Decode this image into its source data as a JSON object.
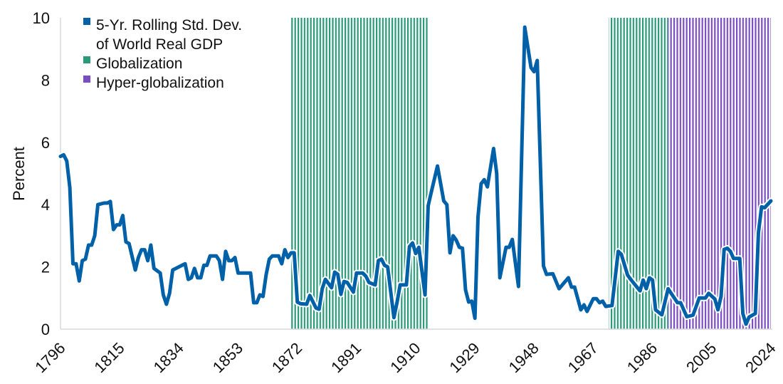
{
  "chart_data": {
    "type": "line",
    "title": "",
    "xlabel": "",
    "ylabel": "Percent",
    "xlim": [
      1796,
      2024
    ],
    "ylim": [
      0,
      10
    ],
    "x_ticks": [
      "1796",
      "1815",
      "1834",
      "1853",
      "1872",
      "1891",
      "1910",
      "1929",
      "1948",
      "1967",
      "1986",
      "2005",
      "2024"
    ],
    "y_ticks": [
      "0",
      "2",
      "4",
      "6",
      "8",
      "10"
    ],
    "grid": false,
    "legend_position": "top-left",
    "legend": [
      {
        "label_lines": [
          "5-Yr. Rolling Std. Dev.",
          "of World Real GDP"
        ],
        "color": "#0061a8",
        "kind": "series"
      },
      {
        "label_lines": [
          "Globalization"
        ],
        "color": "#2a9a78",
        "kind": "band"
      },
      {
        "label_lines": [
          "Hyper-globalization"
        ],
        "color": "#7b4dc2",
        "kind": "band"
      }
    ],
    "bands": [
      {
        "name": "Globalization",
        "start": 1870,
        "end": 1914,
        "color": "#2a9a78"
      },
      {
        "name": "Globalization",
        "start": 1972,
        "end": 1991,
        "color": "#2a9a78"
      },
      {
        "name": "Hyper-globalization",
        "start": 1991,
        "end": 2024,
        "color": "#7b4dc2"
      }
    ],
    "series": [
      {
        "name": "5-Yr. Rolling Std. Dev. of World Real GDP",
        "color": "#0061a8",
        "points": [
          [
            1796,
            5.55
          ],
          [
            1797,
            5.6
          ],
          [
            1798,
            5.4
          ],
          [
            1799,
            4.55
          ],
          [
            1800,
            2.1
          ],
          [
            1801,
            2.1
          ],
          [
            1802,
            1.55
          ],
          [
            1803,
            2.2
          ],
          [
            1804,
            2.25
          ],
          [
            1805,
            2.7
          ],
          [
            1806,
            2.7
          ],
          [
            1807,
            3.0
          ],
          [
            1808,
            4.0
          ],
          [
            1810,
            4.05
          ],
          [
            1811,
            4.05
          ],
          [
            1812,
            4.1
          ],
          [
            1813,
            3.2
          ],
          [
            1814,
            3.35
          ],
          [
            1815,
            3.35
          ],
          [
            1816,
            3.65
          ],
          [
            1817,
            2.8
          ],
          [
            1818,
            2.75
          ],
          [
            1820,
            1.9
          ],
          [
            1821,
            2.3
          ],
          [
            1822,
            2.55
          ],
          [
            1823,
            2.55
          ],
          [
            1824,
            2.2
          ],
          [
            1825,
            2.7
          ],
          [
            1826,
            1.95
          ],
          [
            1828,
            1.8
          ],
          [
            1829,
            1.1
          ],
          [
            1830,
            0.8
          ],
          [
            1831,
            1.15
          ],
          [
            1832,
            1.9
          ],
          [
            1834,
            2.0
          ],
          [
            1835,
            2.05
          ],
          [
            1836,
            2.1
          ],
          [
            1837,
            1.6
          ],
          [
            1838,
            1.65
          ],
          [
            1839,
            1.95
          ],
          [
            1840,
            1.65
          ],
          [
            1841,
            1.65
          ],
          [
            1842,
            2.05
          ],
          [
            1843,
            2.05
          ],
          [
            1844,
            2.35
          ],
          [
            1846,
            2.35
          ],
          [
            1847,
            2.2
          ],
          [
            1848,
            1.6
          ],
          [
            1849,
            2.5
          ],
          [
            1850,
            2.2
          ],
          [
            1851,
            2.2
          ],
          [
            1852,
            2.3
          ],
          [
            1853,
            1.8
          ],
          [
            1855,
            1.8
          ],
          [
            1857,
            1.8
          ],
          [
            1858,
            0.85
          ],
          [
            1859,
            0.85
          ],
          [
            1860,
            1.1
          ],
          [
            1861,
            1.05
          ],
          [
            1862,
            1.75
          ],
          [
            1863,
            2.25
          ],
          [
            1864,
            2.35
          ],
          [
            1866,
            2.35
          ],
          [
            1867,
            2.1
          ],
          [
            1868,
            2.55
          ],
          [
            1869,
            2.3
          ],
          [
            1870,
            2.45
          ],
          [
            1871,
            2.45
          ],
          [
            1872,
            0.87
          ],
          [
            1873,
            0.82
          ],
          [
            1875,
            0.8
          ],
          [
            1876,
            1.08
          ],
          [
            1878,
            0.68
          ],
          [
            1879,
            0.64
          ],
          [
            1880,
            1.3
          ],
          [
            1881,
            1.6
          ],
          [
            1883,
            1.33
          ],
          [
            1884,
            1.83
          ],
          [
            1885,
            1.76
          ],
          [
            1886,
            1.12
          ],
          [
            1887,
            1.53
          ],
          [
            1888,
            1.5
          ],
          [
            1890,
            1.19
          ],
          [
            1891,
            1.8
          ],
          [
            1893,
            1.8
          ],
          [
            1894,
            1.7
          ],
          [
            1895,
            1.5
          ],
          [
            1897,
            1.42
          ],
          [
            1898,
            2.2
          ],
          [
            1899,
            2.25
          ],
          [
            1900,
            2.05
          ],
          [
            1901,
            2.0
          ],
          [
            1903,
            0.37
          ],
          [
            1904,
            0.85
          ],
          [
            1905,
            1.42
          ],
          [
            1907,
            1.42
          ],
          [
            1908,
            2.65
          ],
          [
            1909,
            2.77
          ],
          [
            1910,
            2.43
          ],
          [
            1911,
            2.63
          ],
          [
            1913,
            1.1
          ],
          [
            1914,
            3.96
          ],
          [
            1915,
            4.4
          ],
          [
            1917,
            5.24
          ],
          [
            1919,
            4.12
          ],
          [
            1920,
            4.0
          ],
          [
            1921,
            2.45
          ],
          [
            1922,
            3.0
          ],
          [
            1923,
            2.86
          ],
          [
            1924,
            2.63
          ],
          [
            1925,
            2.6
          ],
          [
            1926,
            1.26
          ],
          [
            1927,
            0.87
          ],
          [
            1928,
            0.9
          ],
          [
            1929,
            0.35
          ],
          [
            1930,
            3.6
          ],
          [
            1931,
            4.67
          ],
          [
            1932,
            4.8
          ],
          [
            1933,
            4.57
          ],
          [
            1935,
            5.8
          ],
          [
            1936,
            5.0
          ],
          [
            1937,
            1.65
          ],
          [
            1939,
            2.63
          ],
          [
            1940,
            2.63
          ],
          [
            1941,
            2.88
          ],
          [
            1943,
            1.37
          ],
          [
            1945,
            9.7
          ],
          [
            1947,
            8.4
          ],
          [
            1948,
            8.27
          ],
          [
            1949,
            8.63
          ],
          [
            1951,
            2.03
          ],
          [
            1952,
            1.76
          ],
          [
            1954,
            1.78
          ],
          [
            1956,
            1.3
          ],
          [
            1959,
            1.65
          ],
          [
            1960,
            1.35
          ],
          [
            1961,
            1.35
          ],
          [
            1963,
            0.62
          ],
          [
            1964,
            0.78
          ],
          [
            1965,
            0.57
          ],
          [
            1967,
            0.98
          ],
          [
            1968,
            0.98
          ],
          [
            1969,
            0.85
          ],
          [
            1970,
            0.9
          ],
          [
            1971,
            0.73
          ],
          [
            1973,
            0.76
          ],
          [
            1975,
            2.5
          ],
          [
            1976,
            2.4
          ],
          [
            1978,
            1.74
          ],
          [
            1979,
            1.6
          ],
          [
            1981,
            1.35
          ],
          [
            1982,
            1.23
          ],
          [
            1983,
            1.58
          ],
          [
            1984,
            1.3
          ],
          [
            1985,
            1.65
          ],
          [
            1986,
            1.58
          ],
          [
            1987,
            0.62
          ],
          [
            1989,
            0.46
          ],
          [
            1991,
            1.3
          ],
          [
            1994,
            0.85
          ],
          [
            1995,
            0.85
          ],
          [
            1997,
            0.4
          ],
          [
            1999,
            0.45
          ],
          [
            2001,
            1.0
          ],
          [
            2003,
            1.0
          ],
          [
            2004,
            1.15
          ],
          [
            2006,
            0.97
          ],
          [
            2007,
            0.62
          ],
          [
            2008,
            1.05
          ],
          [
            2009,
            2.56
          ],
          [
            2010,
            2.6
          ],
          [
            2011,
            2.5
          ],
          [
            2012,
            2.27
          ],
          [
            2014,
            2.27
          ],
          [
            2015,
            0.5
          ],
          [
            2016,
            0.16
          ],
          [
            2017,
            0.39
          ],
          [
            2019,
            0.5
          ],
          [
            2020,
            3.1
          ],
          [
            2021,
            3.93
          ],
          [
            2022,
            3.9
          ],
          [
            2024,
            4.12
          ]
        ]
      }
    ]
  }
}
